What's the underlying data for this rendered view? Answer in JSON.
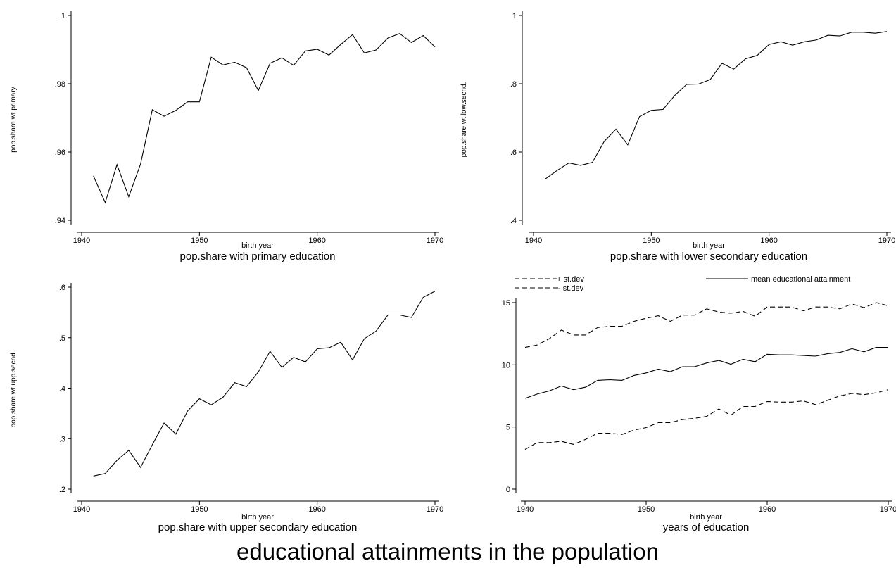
{
  "main_title": "educational attainments in the population",
  "chart_data": [
    {
      "type": "line",
      "title": "pop.share with primary education",
      "xlabel": "birth year",
      "ylabel": "pop.share wt primary",
      "xlim": [
        1940,
        1970
      ],
      "ylim": [
        0.94,
        1.0
      ],
      "xticks": [
        1940,
        1950,
        1960,
        1970
      ],
      "xtick_labels": [
        "1940",
        "1950",
        "1960",
        "1970"
      ],
      "yticks": [
        0.94,
        0.96,
        0.98,
        1.0
      ],
      "ytick_labels": [
        ".94",
        ".96",
        ".98",
        "1"
      ],
      "grid": false,
      "x": [
        1941,
        1942,
        1943,
        1944,
        1945,
        1946,
        1947,
        1948,
        1949,
        1950,
        1951,
        1952,
        1953,
        1954,
        1955,
        1956,
        1957,
        1958,
        1959,
        1960,
        1961,
        1962,
        1963,
        1964,
        1965,
        1966,
        1967,
        1968,
        1969,
        1970
      ],
      "series": [
        {
          "style": "solid",
          "values": [
            0.953,
            0.9452,
            0.9563,
            0.9469,
            0.9565,
            0.9724,
            0.9705,
            0.9722,
            0.9747,
            0.9747,
            0.9878,
            0.9855,
            0.9863,
            0.9847,
            0.978,
            0.986,
            0.9876,
            0.9854,
            0.9896,
            0.9901,
            0.9884,
            0.9915,
            0.9944,
            0.989,
            0.9899,
            0.9934,
            0.9947,
            0.9921,
            0.9941,
            0.9908
          ]
        }
      ]
    },
    {
      "type": "line",
      "title": "pop.share with lower secondary education",
      "xlabel": "birth year",
      "ylabel": "pop.share wt low.secnd.",
      "xlim": [
        1940,
        1970
      ],
      "ylim": [
        0.4,
        1.0
      ],
      "xticks": [
        1940,
        1950,
        1960,
        1970
      ],
      "xtick_labels": [
        "1940",
        "1950",
        "1960",
        "1970"
      ],
      "yticks": [
        0.4,
        0.6,
        0.8,
        1.0
      ],
      "ytick_labels": [
        ".4",
        ".6",
        ".8",
        "1"
      ],
      "grid": false,
      "x": [
        1941,
        1942,
        1943,
        1944,
        1945,
        1946,
        1947,
        1948,
        1949,
        1950,
        1951,
        1952,
        1953,
        1954,
        1955,
        1956,
        1957,
        1958,
        1959,
        1960,
        1961,
        1962,
        1963,
        1964,
        1965,
        1966,
        1967,
        1968,
        1969,
        1970
      ],
      "series": [
        {
          "style": "solid",
          "values": [
            0.521,
            0.546,
            0.568,
            0.561,
            0.57,
            0.631,
            0.667,
            0.621,
            0.704,
            0.722,
            0.725,
            0.766,
            0.798,
            0.799,
            0.812,
            0.86,
            0.843,
            0.873,
            0.883,
            0.915,
            0.923,
            0.913,
            0.923,
            0.928,
            0.942,
            0.94,
            0.951,
            0.951,
            0.948,
            0.953
          ]
        }
      ]
    },
    {
      "type": "line",
      "title": "pop.share with upper secondary education",
      "xlabel": "birth year",
      "ylabel": "pop.share wt upp.secnd.",
      "xlim": [
        1940,
        1970
      ],
      "ylim": [
        0.2,
        0.6
      ],
      "xticks": [
        1940,
        1950,
        1960,
        1970
      ],
      "xtick_labels": [
        "1940",
        "1950",
        "1960",
        "1970"
      ],
      "yticks": [
        0.2,
        0.3,
        0.4,
        0.5,
        0.6
      ],
      "ytick_labels": [
        ".2",
        ".3",
        ".4",
        ".5",
        ".6"
      ],
      "grid": false,
      "x": [
        1941,
        1942,
        1943,
        1944,
        1945,
        1946,
        1947,
        1948,
        1949,
        1950,
        1951,
        1952,
        1953,
        1954,
        1955,
        1956,
        1957,
        1958,
        1959,
        1960,
        1961,
        1962,
        1963,
        1964,
        1965,
        1966,
        1967,
        1968,
        1969,
        1970
      ],
      "series": [
        {
          "style": "solid",
          "values": [
            0.226,
            0.231,
            0.257,
            0.277,
            0.243,
            0.288,
            0.331,
            0.309,
            0.355,
            0.379,
            0.367,
            0.382,
            0.411,
            0.403,
            0.432,
            0.473,
            0.441,
            0.461,
            0.452,
            0.478,
            0.48,
            0.491,
            0.456,
            0.498,
            0.513,
            0.545,
            0.545,
            0.54,
            0.58,
            0.592
          ]
        }
      ]
    },
    {
      "type": "line",
      "title": "years of education",
      "xlabel": "birth year",
      "ylabel": "",
      "xlim": [
        1940,
        1970
      ],
      "ylim": [
        0,
        15
      ],
      "xticks": [
        1940,
        1950,
        1960,
        1970
      ],
      "xtick_labels": [
        "1940",
        "1950",
        "1960",
        "1970"
      ],
      "yticks": [
        0,
        5,
        10,
        15
      ],
      "ytick_labels": [
        "0",
        "5",
        "10",
        "15"
      ],
      "grid": false,
      "legend": {
        "placement": "top",
        "entries": [
          "+ st.dev",
          "- st.dev",
          "mean educational attainment"
        ]
      },
      "x": [
        1940,
        1941,
        1942,
        1943,
        1944,
        1945,
        1946,
        1947,
        1948,
        1949,
        1950,
        1951,
        1952,
        1953,
        1954,
        1955,
        1956,
        1957,
        1958,
        1959,
        1960,
        1961,
        1962,
        1963,
        1964,
        1965,
        1966,
        1967,
        1968,
        1969,
        1970
      ],
      "series": [
        {
          "name": "+ st.dev",
          "style": "dashed",
          "values": [
            11.4,
            11.6,
            12.1,
            12.8,
            12.4,
            12.4,
            13.0,
            13.1,
            13.1,
            13.5,
            13.75,
            13.95,
            13.5,
            14.0,
            14.0,
            14.5,
            14.25,
            14.15,
            14.3,
            13.9,
            14.65,
            14.65,
            14.65,
            14.35,
            14.65,
            14.65,
            14.5,
            14.9,
            14.6,
            15.0,
            14.75
          ]
        },
        {
          "name": "mean educational attainment",
          "style": "solid",
          "values": [
            7.3,
            7.65,
            7.9,
            8.3,
            8.0,
            8.2,
            8.75,
            8.8,
            8.75,
            9.15,
            9.35,
            9.65,
            9.45,
            9.85,
            9.85,
            10.15,
            10.35,
            10.05,
            10.45,
            10.25,
            10.85,
            10.8,
            10.8,
            10.75,
            10.7,
            10.9,
            11.0,
            11.3,
            11.05,
            11.4,
            11.4
          ]
        },
        {
          "name": "- st.dev",
          "style": "dashed",
          "values": [
            3.2,
            3.75,
            3.75,
            3.85,
            3.6,
            4.0,
            4.5,
            4.5,
            4.4,
            4.75,
            4.95,
            5.35,
            5.35,
            5.6,
            5.7,
            5.85,
            6.45,
            5.95,
            6.65,
            6.65,
            7.05,
            7.0,
            7.0,
            7.1,
            6.8,
            7.15,
            7.5,
            7.7,
            7.6,
            7.75,
            8.0
          ]
        }
      ]
    }
  ]
}
